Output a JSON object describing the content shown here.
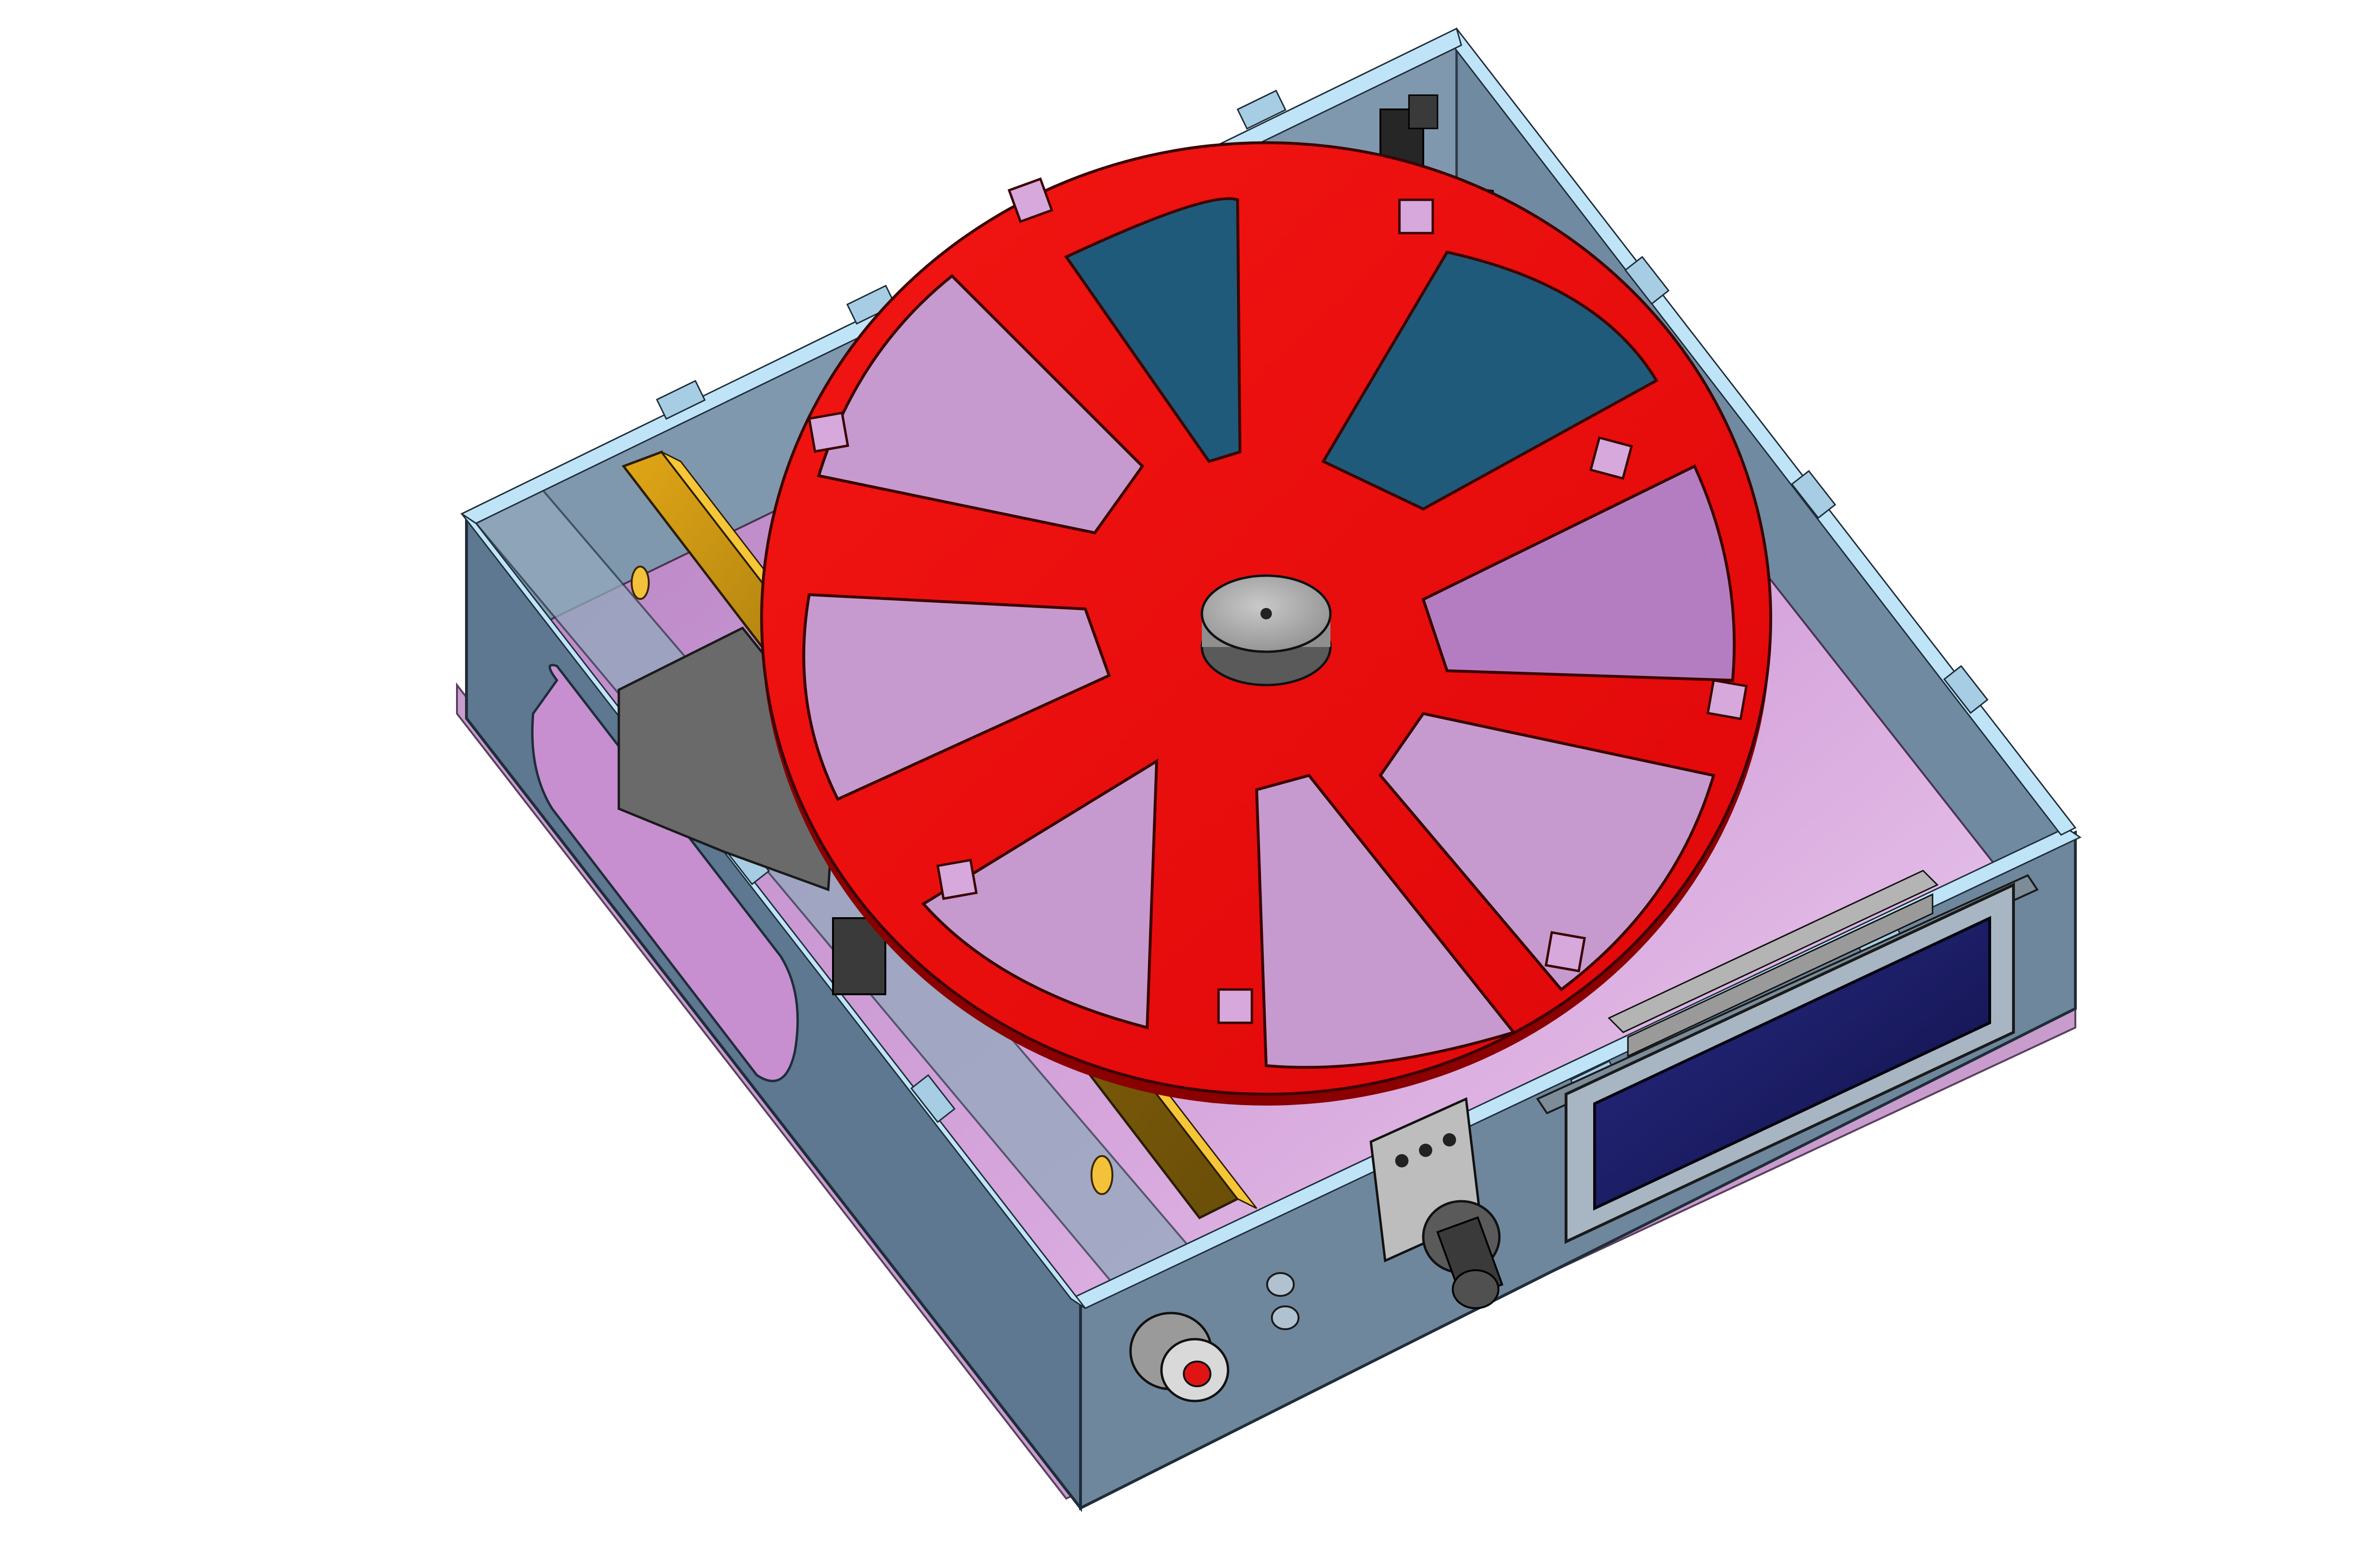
{
  "view": {
    "kind": "3d-cad-render",
    "background": "#ffffff"
  },
  "colors": {
    "enclosure_light": "#8aa3b8",
    "enclosure_mid": "#607a90",
    "enclosure_dark": "#4a6277",
    "enclosure_edge": "#a9d6f2",
    "floor_panel": "#d7a8db",
    "floor_panel_light": "#e8c3ea",
    "wheel": "#ee0f12",
    "wheel_edge": "#ff3a34",
    "hub": "#9a9a9a",
    "hub_top": "#b3b3b3",
    "pcb": "#1f5a7a",
    "bracket": "#b6820a",
    "bracket_dark": "#6f5208",
    "lcd_screen": "#1c1d66",
    "lcd_bezel": "#9aa7b3",
    "knob": "#3a3a3a",
    "jack_core": "#e11414",
    "jack_body": "#d0d0d0"
  },
  "components": [
    {
      "name": "enclosure"
    },
    {
      "name": "floor-panel"
    },
    {
      "name": "mounting-bracket"
    },
    {
      "name": "microcontroller-board"
    },
    {
      "name": "optical-sensor"
    },
    {
      "name": "motor"
    },
    {
      "name": "spoked-wheel",
      "spokes": 8,
      "square_notches": 8
    },
    {
      "name": "center-hub"
    },
    {
      "name": "lcd-display-module"
    },
    {
      "name": "rotary-potentiometer"
    },
    {
      "name": "power-jack"
    },
    {
      "name": "led-holes"
    }
  ]
}
